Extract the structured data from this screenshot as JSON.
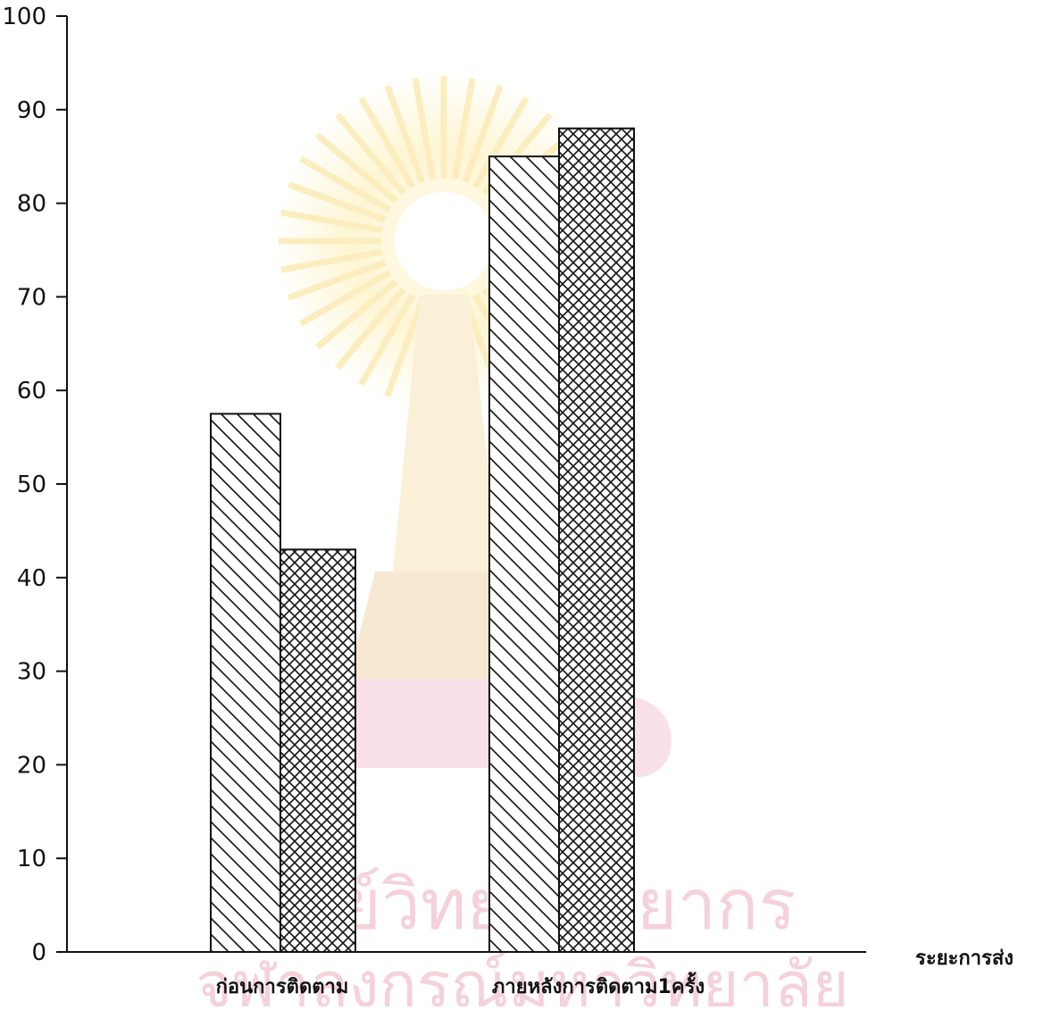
{
  "chart_data": {
    "type": "bar",
    "title": "",
    "xlabel": "ระยะการส่ง",
    "ylabel": "",
    "ylim": [
      0,
      100
    ],
    "yticks": [
      0,
      10,
      20,
      30,
      40,
      50,
      60,
      70,
      80,
      90,
      100
    ],
    "categories": [
      "ก่อนการติดตาม",
      "ภายหลังการติดตาม1ครั้ง"
    ],
    "series": [
      {
        "pattern": "diagonal-hatch",
        "values": [
          57.5,
          85
        ]
      },
      {
        "pattern": "cross-hatch",
        "values": [
          43,
          88
        ]
      }
    ],
    "grid": false,
    "legend": "none"
  },
  "watermark": {
    "text": "ศูนย์วิทยทรัพยากร",
    "subtext": "จุฬาลงกรณ์มหาวิทยาลัย"
  }
}
